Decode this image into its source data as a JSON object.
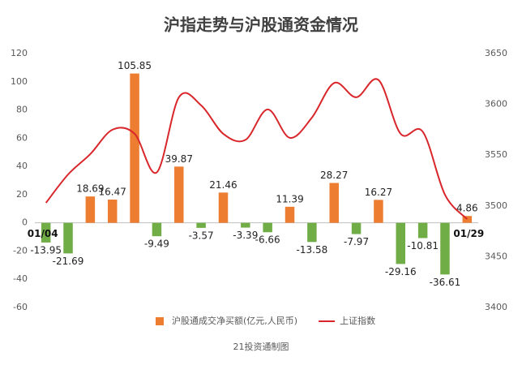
{
  "chart_data": {
    "type": "bar_line",
    "title": "沪指走势与沪股通资金情况",
    "footer": "21投资通制图",
    "categories": [
      "01/04",
      null,
      null,
      null,
      null,
      null,
      null,
      null,
      null,
      null,
      null,
      null,
      null,
      null,
      null,
      null,
      null,
      null,
      null,
      "01/29"
    ],
    "series": [
      {
        "name": "沪股通成交净买额(亿元,人民币)",
        "type": "bar",
        "color": "#ed7d31",
        "negative_color": "#70ad47",
        "values": [
          -13.95,
          -21.69,
          18.69,
          16.47,
          105.85,
          -9.49,
          39.87,
          -3.57,
          21.46,
          -3.39,
          -6.66,
          11.39,
          -13.58,
          28.27,
          -7.97,
          16.27,
          -29.16,
          -10.81,
          -36.61,
          4.86
        ]
      },
      {
        "name": "上证指数",
        "type": "line",
        "color": "#d9262b",
        "axis": "y2",
        "values": [
          3503,
          3531,
          3551,
          3575,
          3571,
          3533,
          3607,
          3599,
          3571,
          3565,
          3595,
          3567,
          3587,
          3621,
          3607,
          3624,
          3571,
          3573,
          3511,
          3487
        ]
      }
    ],
    "ylim": [
      -60,
      120
    ],
    "yticks": [
      -60,
      -40,
      -20,
      0,
      20,
      40,
      60,
      80,
      100,
      120
    ],
    "y2lim": [
      3400,
      3650
    ],
    "y2ticks": [
      3400,
      3450,
      3500,
      3550,
      3600,
      3650
    ],
    "grid": false,
    "legend": "bottom"
  }
}
